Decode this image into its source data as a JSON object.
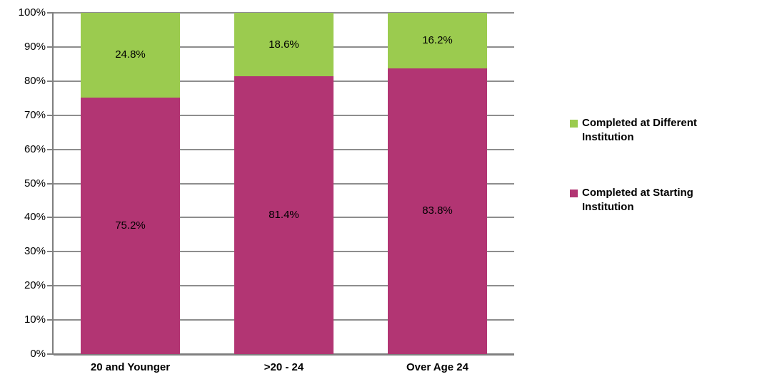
{
  "colors": {
    "series_starting": "#B23573",
    "series_different": "#9BCB4F",
    "gridline": "#8D8D8D",
    "axis": "#7F7F7F",
    "text": "#000000",
    "background": "#FFFFFF"
  },
  "chart_data": {
    "type": "bar",
    "stacked": true,
    "title": "",
    "xlabel": "",
    "ylabel": "",
    "categories": [
      "20 and Younger",
      ">20 - 24",
      "Over Age 24"
    ],
    "series": [
      {
        "name": "Completed at Starting Institution",
        "color": "#B23573",
        "values": [
          75.2,
          81.4,
          83.8
        ],
        "labels": [
          "75.2%",
          "81.4%",
          "83.8%"
        ]
      },
      {
        "name": "Completed at Different Institution",
        "color": "#9BCB4F",
        "values": [
          24.8,
          18.6,
          16.2
        ],
        "labels": [
          "24.8%",
          "18.6%",
          "16.2%"
        ]
      }
    ],
    "ylim": [
      0,
      100
    ],
    "ytick_step": 10,
    "ytick_labels": [
      "0%",
      "10%",
      "20%",
      "30%",
      "40%",
      "50%",
      "60%",
      "70%",
      "80%",
      "90%",
      "100%"
    ],
    "grid": true,
    "legend_position": "right",
    "legend": [
      {
        "label": "Completed at Different Institution",
        "color": "#9BCB4F"
      },
      {
        "label": "Completed at Starting Institution",
        "color": "#B23573"
      }
    ]
  }
}
